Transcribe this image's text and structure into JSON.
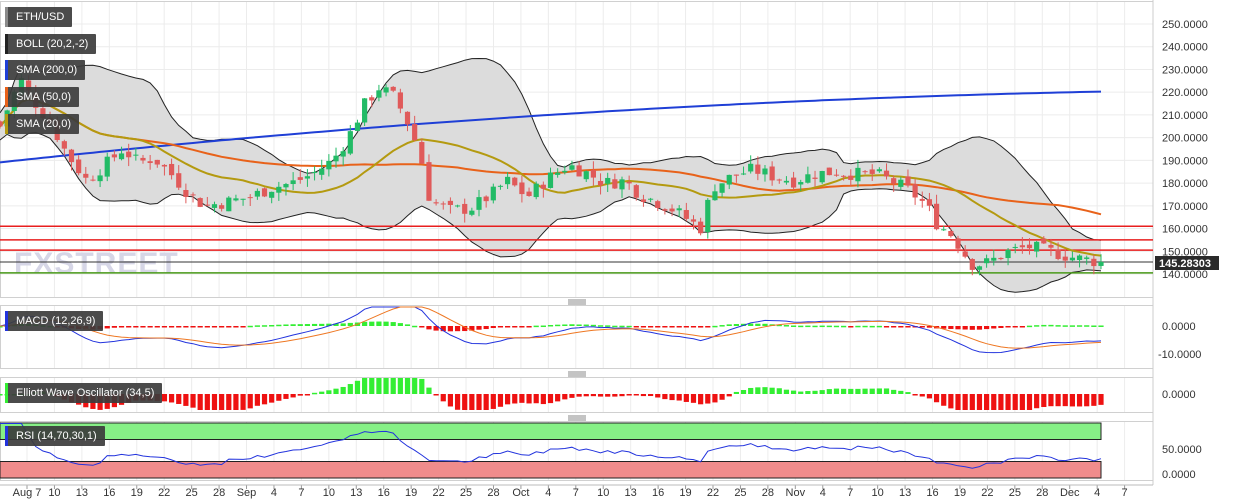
{
  "colors": {
    "bull": "#22bb66",
    "bear": "#e05a5a",
    "sma200": "#1f3fd6",
    "sma50": "#e8621a",
    "sma20": "#b49a10",
    "boll": "#222222",
    "resistance": "#e81e1e",
    "support": "#4a9a1a",
    "macd_line": "#2233dd",
    "signal_line": "#ee7722",
    "hist_up": "#33ee33",
    "hist_down": "#ee1111",
    "rsi_line": "#2233dd",
    "rsi_upper_zone": "#86f086",
    "rsi_lower_zone": "#f08c8c"
  },
  "legend": {
    "symbol": "ETH/USD",
    "boll": "BOLL (20,2,-2)",
    "sma200": "SMA (200,0)",
    "sma50": "SMA (50,0)",
    "sma20": "SMA (20,0)",
    "macd": "MACD (12,26,9)",
    "ewo": "Elliott Wave Oscillator (34,5)",
    "rsi": "RSI (14,70,30,1)"
  },
  "watermark": "FXSTREET",
  "price_tag": "145.28303",
  "chart_data": {
    "type": "candlestick",
    "symbol": "ETH/USD",
    "last_price": 145.28303,
    "x_labels": [
      "Aug 7",
      "10",
      "13",
      "16",
      "19",
      "22",
      "25",
      "28",
      "Sep",
      "4",
      "7",
      "10",
      "13",
      "16",
      "19",
      "22",
      "25",
      "28",
      "Oct",
      "4",
      "7",
      "10",
      "13",
      "16",
      "19",
      "22",
      "25",
      "28",
      "Nov",
      "4",
      "7",
      "10",
      "13",
      "16",
      "19",
      "22",
      "25",
      "28",
      "Dec",
      "4",
      "7"
    ],
    "price_axis": {
      "ylim": [
        131,
        256
      ],
      "ticks": [
        "250.0000",
        "240.0000",
        "230.0000",
        "220.0000",
        "210.0000",
        "200.0000",
        "190.0000",
        "180.0000",
        "170.0000",
        "160.0000",
        "150.0000",
        "140.0000"
      ]
    },
    "levels": {
      "resistance": [
        161,
        155,
        150.5
      ],
      "support": [
        140.5
      ],
      "current": 145.28
    },
    "macd_axis": {
      "ticks": [
        "0.0000",
        "-10.0000"
      ]
    },
    "ewo_axis": {
      "ticks": [
        "0.0000"
      ]
    },
    "rsi_axis": {
      "ticks": [
        "50.0000",
        "0.0000"
      ]
    }
  }
}
